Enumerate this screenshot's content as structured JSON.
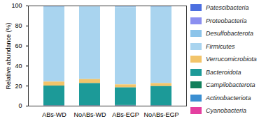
{
  "chart_data": {
    "type": "bar",
    "stacked": true,
    "legend": "right",
    "ylabel": "Relative abundance (%)",
    "categories": [
      "ABs-WD",
      "NoABs-WD",
      "ABs-EGP",
      "NoABs-EGP"
    ],
    "ylim": [
      0,
      100
    ],
    "yticks": [
      0,
      20,
      40,
      60,
      80,
      100
    ],
    "series": [
      {
        "name": "Patescibacteria",
        "color": "#4c6fe0",
        "values": [
          0.4,
          0.2,
          0.4,
          0.4
        ]
      },
      {
        "name": "Proteobacteria",
        "color": "#8b8ff0",
        "values": [
          0.5,
          0.2,
          0.5,
          0.5
        ]
      },
      {
        "name": "Desulfobacterota",
        "color": "#8cc4ea",
        "values": [
          1,
          0.5,
          0.8,
          1
        ]
      },
      {
        "name": "Firmicutes",
        "color": "#a9d4ef",
        "values": [
          74,
          72.5,
          77,
          75.5
        ]
      },
      {
        "name": "Verrucomicrobiota",
        "color": "#f2c46a",
        "values": [
          4,
          4,
          3,
          3
        ]
      },
      {
        "name": "Bacteroidota",
        "color": "#1c9a98",
        "values": [
          19.5,
          22,
          17.5,
          19
        ]
      },
      {
        "name": "Campilobacterota",
        "color": "#12805c",
        "values": [
          0.3,
          0.3,
          0.4,
          0.3
        ]
      },
      {
        "name": "Actinobacteriota",
        "color": "#3b8fd2",
        "values": [
          0.2,
          0.2,
          0.3,
          0.2
        ]
      },
      {
        "name": "Cyanobacteria",
        "color": "#e43fa0",
        "values": [
          0.1,
          0.1,
          0.1,
          0.1
        ]
      }
    ]
  }
}
